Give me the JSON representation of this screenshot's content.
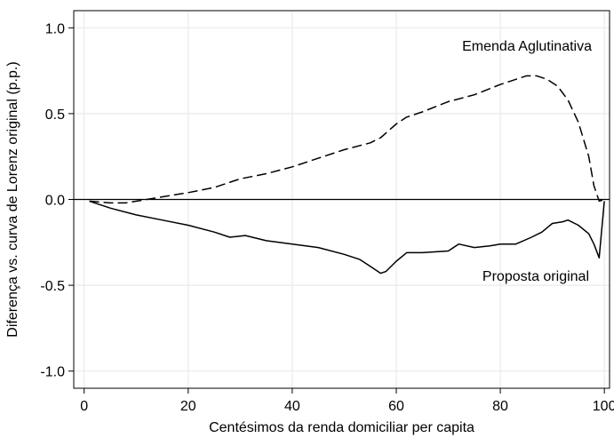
{
  "chart_data": {
    "type": "line",
    "title": "",
    "xlabel": "Centésimos da renda domiciliar per capita",
    "ylabel": "Diferença vs. curva de Lorenz original (p.p.)",
    "xlim": [
      0,
      100
    ],
    "ylim": [
      -1.0,
      1.0
    ],
    "x_ticks": [
      0,
      20,
      40,
      60,
      80,
      100
    ],
    "y_ticks": [
      -1.0,
      -0.5,
      0.0,
      0.5,
      1.0
    ],
    "y_tick_labels": [
      "-1.0",
      "-0.5",
      "0.0",
      "0.5",
      "1.0"
    ],
    "grid": true,
    "reference_line_y": 0,
    "series": [
      {
        "name": "Emenda Aglutinativa",
        "style": "dashed",
        "x": [
          1,
          5,
          8,
          12,
          16,
          20,
          25,
          30,
          35,
          40,
          45,
          50,
          55,
          57,
          60,
          62,
          65,
          70,
          75,
          80,
          83,
          85,
          87,
          89,
          91,
          93,
          95,
          97,
          98,
          99,
          100
        ],
        "y": [
          -0.01,
          -0.02,
          -0.02,
          0.0,
          0.02,
          0.04,
          0.07,
          0.12,
          0.15,
          0.19,
          0.24,
          0.29,
          0.33,
          0.36,
          0.44,
          0.48,
          0.51,
          0.57,
          0.61,
          0.67,
          0.7,
          0.72,
          0.72,
          0.7,
          0.66,
          0.58,
          0.45,
          0.25,
          0.08,
          -0.01,
          0.0
        ]
      },
      {
        "name": "Proposta original",
        "style": "solid",
        "x": [
          1,
          5,
          10,
          15,
          20,
          25,
          28,
          31,
          35,
          40,
          45,
          50,
          53,
          55,
          57,
          58,
          60,
          62,
          65,
          70,
          72,
          75,
          78,
          80,
          83,
          86,
          88,
          90,
          92,
          93,
          95,
          97,
          98,
          99,
          100
        ],
        "y": [
          -0.01,
          -0.05,
          -0.09,
          -0.12,
          -0.15,
          -0.19,
          -0.22,
          -0.21,
          -0.24,
          -0.26,
          -0.28,
          -0.32,
          -0.35,
          -0.39,
          -0.43,
          -0.42,
          -0.36,
          -0.31,
          -0.31,
          -0.3,
          -0.26,
          -0.28,
          -0.27,
          -0.26,
          -0.26,
          -0.22,
          -0.19,
          -0.14,
          -0.13,
          -0.12,
          -0.15,
          -0.2,
          -0.26,
          -0.34,
          -0.01
        ]
      }
    ],
    "annotations": [
      {
        "text": "Emenda Aglutinativa",
        "series": 0
      },
      {
        "text": "Proposta original",
        "series": 1
      }
    ]
  }
}
